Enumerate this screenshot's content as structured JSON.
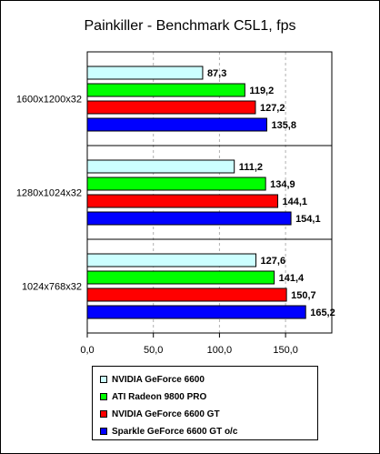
{
  "chart_data": {
    "type": "bar",
    "orientation": "horizontal",
    "title": "Painkiller - Benchmark C5L1, fps",
    "categories": [
      "1600x1200x32",
      "1280x1024x32",
      "1024x768x32"
    ],
    "series": [
      {
        "name": "NVIDIA GeForce 6600",
        "color": "#ccffff",
        "values": [
          87.3,
          111.2,
          127.6
        ],
        "labels": [
          "87,3",
          "111,2",
          "127,6"
        ]
      },
      {
        "name": "ATI Radeon 9800 PRO",
        "color": "#00ff00",
        "values": [
          119.2,
          134.9,
          141.4
        ],
        "labels": [
          "119,2",
          "134,9",
          "141,4"
        ]
      },
      {
        "name": "NVIDIA GeForce 6600 GT",
        "color": "#ff0000",
        "values": [
          127.2,
          144.1,
          150.7
        ],
        "labels": [
          "127,2",
          "144,1",
          "150,7"
        ]
      },
      {
        "name": "Sparkle GeForce 6600 GT o/c",
        "color": "#0000ff",
        "values": [
          135.8,
          154.1,
          165.2
        ],
        "labels": [
          "135,8",
          "154,1",
          "165,2"
        ]
      }
    ],
    "xlim": [
      0,
      185
    ],
    "xticks": [
      0,
      50,
      100,
      150
    ],
    "xtick_labels": [
      "0,0",
      "50,0",
      "100,0",
      "150,0"
    ],
    "xlabel": "",
    "ylabel": "",
    "grid": "vertical dashed",
    "legend_position": "bottom"
  }
}
